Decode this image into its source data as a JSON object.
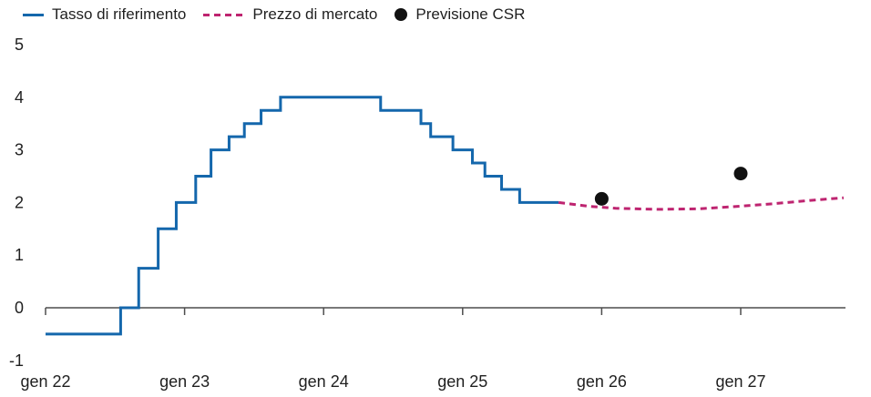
{
  "legend": {
    "items": [
      {
        "label": "Tasso di riferimento",
        "type": "solid-line",
        "color": "#1467ac"
      },
      {
        "label": "Prezzo di mercato",
        "type": "dashed-line",
        "color": "#be2470"
      },
      {
        "label": "Previsione CSR",
        "type": "dot",
        "color": "#111111"
      }
    ]
  },
  "chart_data": {
    "type": "line",
    "title": "",
    "xlabel": "",
    "ylabel": "",
    "grid": false,
    "legend_position": "top-left",
    "axis_color": "#4d4d4d",
    "text_color": "#1f1f1f",
    "x_axis": {
      "range": [
        2022,
        2027.75
      ],
      "ticks": [
        {
          "t": 2022,
          "label": "gen 22"
        },
        {
          "t": 2023,
          "label": "gen 23"
        },
        {
          "t": 2024,
          "label": "gen 24"
        },
        {
          "t": 2025,
          "label": "gen 25"
        },
        {
          "t": 2026,
          "label": "gen 26"
        },
        {
          "t": 2027,
          "label": "gen 27"
        }
      ]
    },
    "y_axis": {
      "range": [
        -1,
        5
      ],
      "ticks": [
        5,
        4,
        3,
        2,
        1,
        0,
        -1
      ]
    },
    "series": [
      {
        "name": "Tasso di riferimento",
        "type": "step",
        "color": "#1467ac",
        "points": [
          [
            2022.0,
            -0.5
          ],
          [
            2022.54,
            0.0
          ],
          [
            2022.67,
            0.75
          ],
          [
            2022.81,
            1.5
          ],
          [
            2022.94,
            2.0
          ],
          [
            2023.08,
            2.5
          ],
          [
            2023.19,
            3.0
          ],
          [
            2023.32,
            3.25
          ],
          [
            2023.43,
            3.5
          ],
          [
            2023.55,
            3.75
          ],
          [
            2023.69,
            4.0
          ],
          [
            2024.41,
            3.75
          ],
          [
            2024.7,
            3.5
          ],
          [
            2024.77,
            3.25
          ],
          [
            2024.93,
            3.0
          ],
          [
            2025.07,
            2.75
          ],
          [
            2025.16,
            2.5
          ],
          [
            2025.28,
            2.25
          ],
          [
            2025.41,
            2.0
          ]
        ],
        "end_t": 2025.69
      },
      {
        "name": "Prezzo di mercato",
        "type": "dashed",
        "color": "#be2470",
        "points": [
          [
            2025.69,
            2.0
          ],
          [
            2025.9,
            1.93
          ],
          [
            2026.1,
            1.89
          ],
          [
            2026.4,
            1.87
          ],
          [
            2026.7,
            1.88
          ],
          [
            2027.0,
            1.93
          ],
          [
            2027.25,
            1.98
          ],
          [
            2027.5,
            2.04
          ],
          [
            2027.74,
            2.09
          ]
        ]
      },
      {
        "name": "Previsione CSR",
        "type": "scatter",
        "color": "#111111",
        "points": [
          [
            2026.0,
            2.07
          ],
          [
            2027.0,
            2.55
          ]
        ]
      }
    ]
  }
}
